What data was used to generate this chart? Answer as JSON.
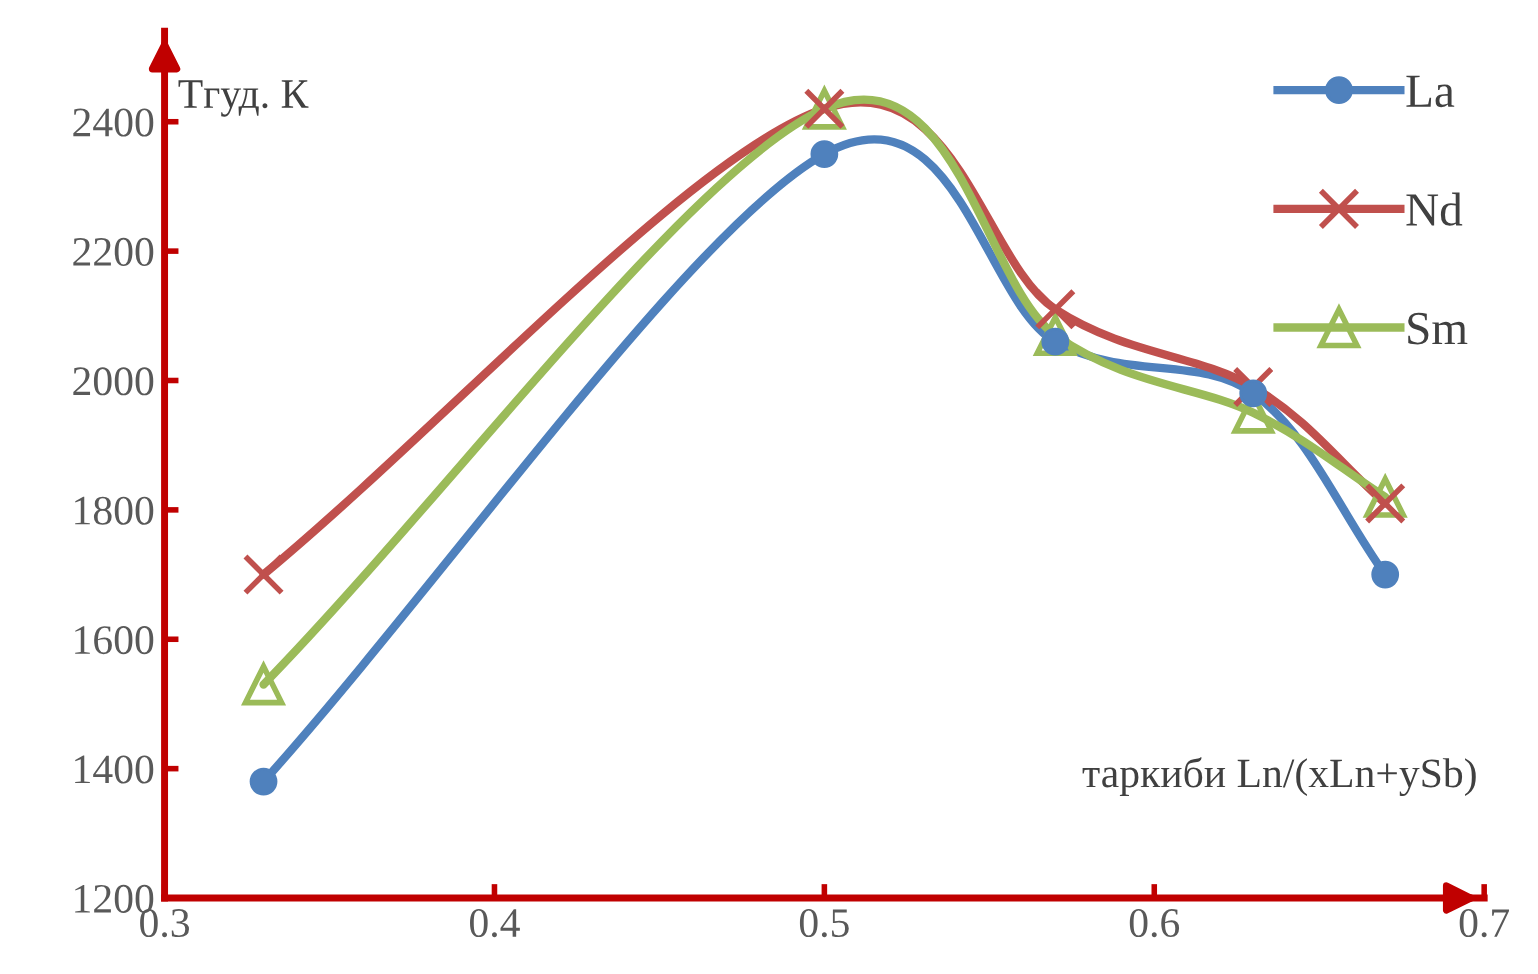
{
  "chart_data": {
    "type": "line",
    "xlabel": "таркиби Ln/(xLn+ySb)",
    "ylabel": "Tгуд. К",
    "x": [
      0.33,
      0.5,
      0.57,
      0.63,
      0.67
    ],
    "series": [
      {
        "name": "La",
        "color": "#4f81bd",
        "marker": "circle",
        "values": [
          1380,
          2350,
          2060,
          1980,
          1700
        ]
      },
      {
        "name": "Nd",
        "color": "#c0504d",
        "marker": "cross",
        "values": [
          1700,
          2420,
          2110,
          1990,
          1810
        ]
      },
      {
        "name": "Sm",
        "color": "#9bbb59",
        "marker": "triangle",
        "values": [
          1530,
          2420,
          2070,
          1950,
          1820
        ]
      }
    ],
    "xlim": [
      0.3,
      0.7
    ],
    "ylim": [
      1200,
      2540
    ],
    "xticks": [
      0.3,
      0.4,
      0.5,
      0.6,
      0.7
    ],
    "yticks": [
      1200,
      1400,
      1600,
      1800,
      2000,
      2200,
      2400
    ],
    "grid": false,
    "legend": "top right",
    "line_style": "solid"
  }
}
